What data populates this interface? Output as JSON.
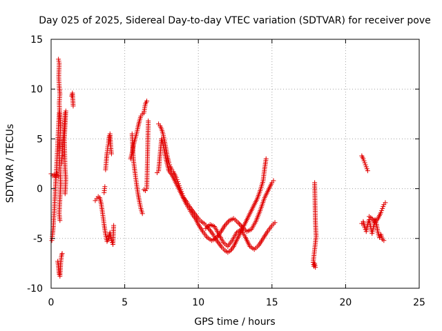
{
  "chart_data": {
    "type": "scatter",
    "title": "Day 025 of 2025, Sidereal Day-to-day VTEC variation (SDTVAR) for receiver pove",
    "xlabel": "GPS time / hours",
    "ylabel": "SDTVAR / TECUs",
    "xlim": [
      0,
      25
    ],
    "ylim": [
      -10,
      15
    ],
    "x_ticks": [
      0,
      5,
      10,
      15,
      20,
      25
    ],
    "y_ticks": [
      -10,
      -5,
      0,
      5,
      10,
      15
    ],
    "x_tick_labels": [
      "0",
      "5",
      "10",
      "15",
      "20",
      "25"
    ],
    "y_tick_labels": [
      "-10",
      "-5",
      "0",
      "5",
      "10",
      "15"
    ],
    "grid": true,
    "marker": "+",
    "color": "#e00000",
    "series": [
      {
        "name": "SDTVAR",
        "segments": [
          [
            [
              0.0,
              1.5
            ],
            [
              0.1,
              1.3
            ],
            [
              0.2,
              1.4
            ],
            [
              0.3,
              1.2
            ],
            [
              0.4,
              1.5
            ],
            [
              0.5,
              1.3
            ]
          ],
          [
            [
              0.05,
              -5.2
            ],
            [
              0.1,
              -4.6
            ],
            [
              0.15,
              -3.8
            ],
            [
              0.2,
              -2.6
            ],
            [
              0.25,
              -1.2
            ],
            [
              0.3,
              0.3
            ],
            [
              0.35,
              1.6
            ],
            [
              0.4,
              3.0
            ],
            [
              0.45,
              4.6
            ],
            [
              0.5,
              6.2
            ],
            [
              0.55,
              7.6
            ]
          ],
          [
            [
              0.5,
              13.0
            ],
            [
              0.55,
              12.6
            ],
            [
              0.52,
              11.2
            ],
            [
              0.55,
              10.3
            ],
            [
              0.6,
              9.5
            ],
            [
              0.55,
              8.6
            ],
            [
              0.6,
              7.2
            ],
            [
              0.65,
              6.5
            ],
            [
              0.6,
              5.0
            ],
            [
              0.55,
              3.5
            ],
            [
              0.6,
              2.0
            ],
            [
              0.65,
              0.5
            ],
            [
              0.6,
              -1.0
            ],
            [
              0.55,
              -2.5
            ],
            [
              0.6,
              -3.2
            ]
          ],
          [
            [
              0.45,
              -7.3
            ],
            [
              0.5,
              -7.8
            ],
            [
              0.55,
              -8.6
            ],
            [
              0.6,
              -8.8
            ],
            [
              0.65,
              -7.5
            ],
            [
              0.7,
              -6.8
            ],
            [
              0.75,
              -6.5
            ]
          ],
          [
            [
              0.7,
              2.5
            ],
            [
              0.75,
              3.5
            ],
            [
              0.8,
              4.6
            ],
            [
              0.85,
              5.5
            ],
            [
              0.9,
              6.2
            ],
            [
              0.95,
              7.6
            ],
            [
              1.0,
              7.8
            ],
            [
              0.9,
              5.0
            ],
            [
              0.95,
              2.0
            ],
            [
              1.0,
              1.0
            ],
            [
              0.95,
              -0.5
            ]
          ],
          [
            [
              1.4,
              9.3
            ],
            [
              1.45,
              9.6
            ],
            [
              1.5,
              8.3
            ]
          ],
          [
            [
              3.0,
              -1.2
            ],
            [
              3.1,
              -1.0
            ],
            [
              3.2,
              -0.8
            ],
            [
              3.3,
              -0.9
            ],
            [
              3.4,
              -1.5
            ],
            [
              3.5,
              -2.5
            ],
            [
              3.6,
              -3.6
            ],
            [
              3.7,
              -4.6
            ],
            [
              3.8,
              -5.3
            ],
            [
              3.9,
              -5.0
            ],
            [
              4.0,
              -4.4
            ],
            [
              4.1,
              -5.2
            ],
            [
              4.2,
              -5.6
            ],
            [
              4.25,
              -3.7
            ]
          ],
          [
            [
              3.6,
              -0.4
            ],
            [
              3.65,
              0.2
            ]
          ],
          [
            [
              3.7,
              1.9
            ],
            [
              3.75,
              2.8
            ],
            [
              3.8,
              3.6
            ],
            [
              3.85,
              4.2
            ],
            [
              3.9,
              4.6
            ],
            [
              3.95,
              5.3
            ],
            [
              4.0,
              5.5
            ],
            [
              4.05,
              4.2
            ],
            [
              4.1,
              3.5
            ]
          ],
          [
            [
              5.4,
              3.0
            ],
            [
              5.5,
              3.6
            ],
            [
              5.6,
              4.4
            ],
            [
              5.7,
              5.0
            ],
            [
              5.8,
              5.5
            ],
            [
              5.9,
              6.2
            ],
            [
              6.0,
              6.8
            ],
            [
              6.1,
              7.3
            ],
            [
              6.2,
              7.5
            ],
            [
              6.3,
              7.6
            ],
            [
              6.4,
              8.5
            ],
            [
              6.5,
              8.8
            ]
          ],
          [
            [
              5.5,
              5.5
            ],
            [
              5.55,
              4.0
            ],
            [
              5.6,
              2.8
            ],
            [
              5.7,
              1.6
            ],
            [
              5.8,
              0.5
            ],
            [
              5.9,
              -0.5
            ],
            [
              6.0,
              -1.3
            ],
            [
              6.1,
              -2.0
            ],
            [
              6.2,
              -2.5
            ]
          ],
          [
            [
              6.3,
              -0.1
            ],
            [
              6.4,
              -0.2
            ],
            [
              6.5,
              0.0
            ],
            [
              6.6,
              6.8
            ]
          ],
          [
            [
              7.3,
              6.5
            ],
            [
              7.4,
              6.3
            ],
            [
              7.5,
              6.0
            ],
            [
              7.6,
              5.5
            ],
            [
              7.7,
              4.8
            ],
            [
              7.8,
              4.0
            ],
            [
              7.9,
              3.2
            ],
            [
              8.0,
              2.6
            ],
            [
              8.1,
              2.2
            ],
            [
              8.2,
              1.9
            ],
            [
              8.3,
              1.7
            ],
            [
              8.4,
              1.4
            ],
            [
              8.5,
              1.1
            ],
            [
              8.6,
              0.7
            ],
            [
              8.7,
              0.3
            ],
            [
              8.8,
              -0.1
            ],
            [
              8.9,
              -0.5
            ],
            [
              9.0,
              -0.9
            ],
            [
              9.2,
              -1.3
            ],
            [
              9.4,
              -1.8
            ],
            [
              9.6,
              -2.2
            ],
            [
              9.8,
              -2.6
            ],
            [
              10.0,
              -3.0
            ],
            [
              10.2,
              -3.3
            ],
            [
              10.4,
              -3.5
            ],
            [
              10.6,
              -3.8
            ],
            [
              10.8,
              -4.2
            ],
            [
              11.0,
              -4.6
            ],
            [
              11.2,
              -5.1
            ],
            [
              11.4,
              -5.5
            ],
            [
              11.6,
              -5.9
            ],
            [
              11.8,
              -6.2
            ],
            [
              12.0,
              -6.4
            ],
            [
              12.2,
              -6.2
            ],
            [
              12.4,
              -5.8
            ],
            [
              12.6,
              -5.2
            ],
            [
              12.8,
              -4.6
            ],
            [
              13.0,
              -4.0
            ],
            [
              13.2,
              -3.4
            ],
            [
              13.4,
              -2.8
            ],
            [
              13.6,
              -2.2
            ],
            [
              13.8,
              -1.6
            ],
            [
              14.0,
              -1.0
            ],
            [
              14.2,
              -0.2
            ],
            [
              14.4,
              0.8
            ],
            [
              14.5,
              2.0
            ],
            [
              14.6,
              3.0
            ]
          ],
          [
            [
              7.2,
              1.6
            ],
            [
              7.3,
              1.8
            ],
            [
              7.5,
              5.0
            ],
            [
              7.6,
              4.5
            ],
            [
              7.7,
              3.8
            ],
            [
              7.8,
              3.0
            ],
            [
              7.9,
              2.4
            ],
            [
              8.0,
              1.8
            ],
            [
              8.2,
              1.4
            ],
            [
              8.4,
              0.8
            ],
            [
              8.6,
              0.2
            ],
            [
              8.8,
              -0.4
            ],
            [
              9.0,
              -1.0
            ],
            [
              9.2,
              -1.6
            ],
            [
              9.4,
              -2.1
            ],
            [
              9.6,
              -2.6
            ],
            [
              9.8,
              -3.0
            ],
            [
              10.0,
              -3.6
            ],
            [
              10.3,
              -4.3
            ],
            [
              10.6,
              -4.9
            ],
            [
              10.9,
              -5.2
            ],
            [
              11.2,
              -5.0
            ],
            [
              11.5,
              -4.4
            ],
            [
              11.8,
              -3.7
            ],
            [
              12.1,
              -3.2
            ],
            [
              12.4,
              -3.0
            ],
            [
              12.7,
              -3.4
            ],
            [
              13.0,
              -3.9
            ],
            [
              13.3,
              -4.3
            ],
            [
              13.6,
              -4.1
            ],
            [
              13.9,
              -3.3
            ],
            [
              14.2,
              -2.2
            ],
            [
              14.5,
              -0.9
            ],
            [
              14.8,
              0.0
            ],
            [
              15.0,
              0.6
            ],
            [
              15.1,
              0.8
            ]
          ],
          [
            [
              10.5,
              -4.0
            ],
            [
              10.8,
              -3.6
            ],
            [
              11.1,
              -3.8
            ],
            [
              11.4,
              -4.6
            ],
            [
              11.7,
              -5.4
            ],
            [
              12.0,
              -5.8
            ],
            [
              12.3,
              -5.2
            ],
            [
              12.6,
              -4.4
            ],
            [
              12.9,
              -4.1
            ],
            [
              13.2,
              -4.9
            ],
            [
              13.5,
              -5.8
            ],
            [
              13.8,
              -6.1
            ],
            [
              14.1,
              -5.7
            ],
            [
              14.4,
              -5.0
            ],
            [
              14.7,
              -4.3
            ],
            [
              15.0,
              -3.7
            ],
            [
              15.2,
              -3.4
            ]
          ],
          [
            [
              17.9,
              0.6
            ],
            [
              17.95,
              -3.3
            ],
            [
              18.0,
              -4.8
            ],
            [
              17.8,
              -7.4
            ],
            [
              17.85,
              -7.8
            ],
            [
              17.9,
              -7.5
            ],
            [
              17.95,
              -7.9
            ]
          ],
          [
            [
              21.1,
              3.3
            ],
            [
              21.2,
              3.0
            ],
            [
              21.3,
              2.6
            ],
            [
              21.4,
              2.2
            ],
            [
              21.5,
              1.8
            ]
          ],
          [
            [
              21.1,
              -3.5
            ],
            [
              21.2,
              -3.3
            ],
            [
              21.3,
              -3.9
            ],
            [
              21.4,
              -4.3
            ],
            [
              21.5,
              -3.6
            ],
            [
              21.6,
              -3.1
            ],
            [
              21.7,
              -3.8
            ],
            [
              21.8,
              -4.5
            ],
            [
              21.9,
              -3.8
            ],
            [
              22.0,
              -3.1
            ],
            [
              22.1,
              -3.6
            ],
            [
              22.2,
              -4.4
            ],
            [
              22.3,
              -4.9
            ],
            [
              22.4,
              -4.6
            ],
            [
              22.5,
              -5.1
            ],
            [
              22.6,
              -5.2
            ]
          ],
          [
            [
              21.6,
              -2.8
            ],
            [
              21.8,
              -3.0
            ],
            [
              22.0,
              -3.4
            ],
            [
              22.2,
              -3.0
            ],
            [
              22.4,
              -2.4
            ],
            [
              22.5,
              -2.0
            ],
            [
              22.6,
              -1.6
            ],
            [
              22.7,
              -1.4
            ]
          ]
        ]
      }
    ]
  }
}
